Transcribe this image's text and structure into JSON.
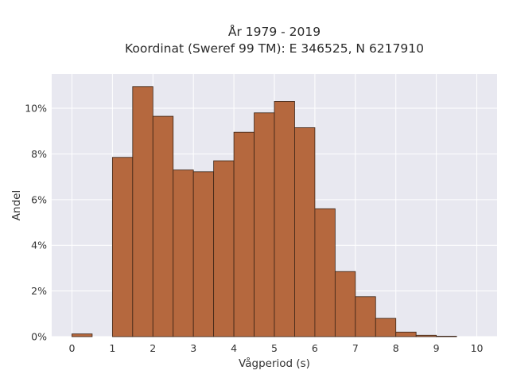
{
  "chart_data": {
    "type": "bar",
    "title_line1": "År 1979 - 2019",
    "title_line2": "Koordinat (Sweref 99 TM): E 346525, N 6217910",
    "xlabel": "Vågperiod (s)",
    "ylabel": "Andel",
    "xlim": [
      -0.5,
      10.5
    ],
    "ylim": [
      0,
      11.5
    ],
    "x_ticks": [
      "0",
      "1",
      "2",
      "3",
      "4",
      "5",
      "6",
      "7",
      "8",
      "9",
      "10"
    ],
    "y_ticks": [
      "0%",
      "2%",
      "4%",
      "6%",
      "8%",
      "10%"
    ],
    "bin_width": 0.5,
    "bins": [
      {
        "start": 0.0,
        "value": 0.12
      },
      {
        "start": 0.5,
        "value": 0.0
      },
      {
        "start": 1.0,
        "value": 7.85
      },
      {
        "start": 1.5,
        "value": 10.95
      },
      {
        "start": 2.0,
        "value": 9.65
      },
      {
        "start": 2.5,
        "value": 7.3
      },
      {
        "start": 3.0,
        "value": 7.22
      },
      {
        "start": 3.5,
        "value": 7.7
      },
      {
        "start": 4.0,
        "value": 8.95
      },
      {
        "start": 4.5,
        "value": 9.8
      },
      {
        "start": 5.0,
        "value": 10.3
      },
      {
        "start": 5.5,
        "value": 9.15
      },
      {
        "start": 6.0,
        "value": 5.6
      },
      {
        "start": 6.5,
        "value": 2.85
      },
      {
        "start": 7.0,
        "value": 1.75
      },
      {
        "start": 7.5,
        "value": 0.8
      },
      {
        "start": 8.0,
        "value": 0.2
      },
      {
        "start": 8.5,
        "value": 0.06
      },
      {
        "start": 9.0,
        "value": 0.02
      }
    ],
    "grid": true,
    "colors": {
      "bar_fill": "#b5683e",
      "bar_stroke": "#3b2416",
      "plot_background": "#e8e8f0",
      "grid": "#ffffff"
    }
  }
}
